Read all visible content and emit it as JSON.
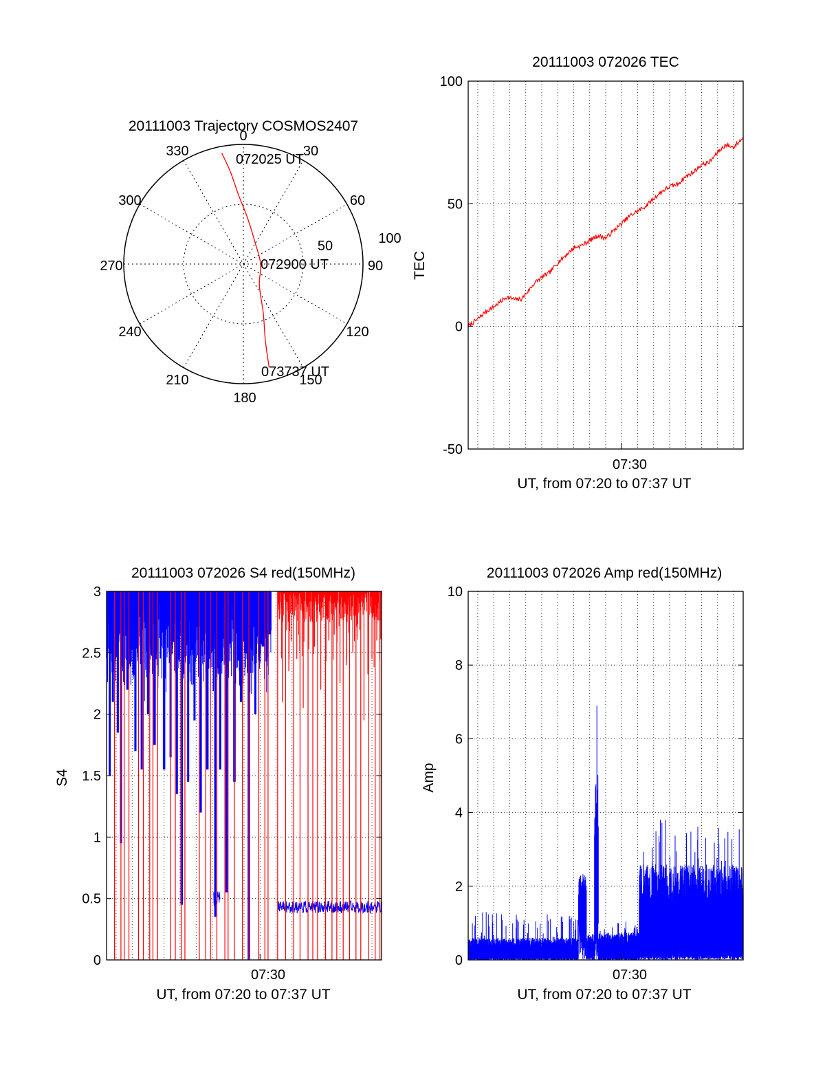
{
  "colors": {
    "red": "#ff0000",
    "blue": "#0000ff",
    "axis": "#000000",
    "grid": "#000000"
  },
  "chart_data": [
    {
      "id": "trajectory",
      "type": "scatter",
      "subtype": "polar",
      "title": "20111003 Trajectory COSMOS2407",
      "azimuth_labels": [
        "0",
        "30",
        "60",
        "90",
        "120",
        "150",
        "180",
        "210",
        "240",
        "270",
        "300",
        "330"
      ],
      "radial_labels": [
        "50",
        "100"
      ],
      "grid": true,
      "track": {
        "color": "#ff0000",
        "points": [
          {
            "azimuth": 349,
            "zenith": 85
          },
          {
            "azimuth": 352,
            "zenith": 70
          },
          {
            "azimuth": 356,
            "zenith": 52
          },
          {
            "azimuth": 5,
            "zenith": 35
          },
          {
            "azimuth": 30,
            "zenith": 18
          },
          {
            "azimuth": 90,
            "zenith": 13
          },
          {
            "azimuth": 143,
            "zenith": 20
          },
          {
            "azimuth": 158,
            "zenith": 40
          },
          {
            "azimuth": 164,
            "zenith": 60
          },
          {
            "azimuth": 166,
            "zenith": 80
          }
        ]
      },
      "annotations": [
        {
          "text": "072025 UT",
          "at": "start"
        },
        {
          "text": "072900 UT",
          "at": "middle"
        },
        {
          "text": "073737 UT",
          "at": "end"
        }
      ]
    },
    {
      "id": "tec",
      "type": "line",
      "title": "20111003 072026 TEC",
      "ylabel": "TEC",
      "xlabel": "UT, from 07:20 to 07:37 UT",
      "ylim": [
        -50,
        100
      ],
      "yticks": [
        "-50",
        "0",
        "50",
        "100"
      ],
      "xlim_minutes": [
        20.4,
        37.6
      ],
      "xtick": {
        "minute": 30,
        "label": "07:30"
      },
      "grid_minutes": [
        21,
        22,
        23,
        24,
        25,
        26,
        27,
        28,
        29,
        30,
        31,
        32,
        33,
        34,
        35,
        36,
        37
      ],
      "ygrid": [
        0,
        50
      ],
      "series": [
        {
          "color": "#ff0000",
          "x": [
            20.4,
            20.6,
            21.0,
            21.5,
            22.0,
            22.4,
            22.8,
            23.3,
            23.7,
            24.1,
            24.6,
            25.0,
            25.5,
            26.0,
            26.5,
            27.0,
            27.5,
            28.0,
            28.5,
            29.0,
            29.5,
            30.0,
            30.5,
            31.0,
            31.5,
            32.0,
            32.5,
            33.0,
            33.5,
            34.0,
            34.5,
            35.0,
            35.5,
            36.0,
            36.5,
            37.0,
            37.6
          ],
          "y": [
            0,
            1,
            3,
            6,
            8,
            10,
            12,
            11,
            11,
            14,
            18,
            20,
            22,
            26,
            29,
            32,
            33,
            35,
            37,
            36,
            39,
            42,
            45,
            47,
            49,
            52,
            55,
            57,
            58,
            61,
            63,
            66,
            67,
            71,
            74,
            73,
            77
          ],
          "noise": 0.9,
          "seed": 7
        }
      ]
    },
    {
      "id": "s4",
      "type": "line",
      "title": "20111003 072026 S4 red(150MHz)",
      "ylabel": "S4",
      "xlabel": "UT, from 07:20 to 07:37 UT",
      "ylim": [
        0,
        3
      ],
      "yticks": [
        "0",
        "0.5",
        "1",
        "1.5",
        "2",
        "2.5",
        "3"
      ],
      "xlim_minutes": [
        20.4,
        37.6
      ],
      "xtick": {
        "minute": 30,
        "label": "07:30"
      },
      "grid_minutes": [
        21,
        22,
        23,
        24,
        25,
        26,
        27,
        28,
        29,
        30,
        31,
        32,
        33,
        34,
        35,
        36,
        37
      ],
      "ygrid": [
        0.5,
        1,
        1.5,
        2,
        2.5
      ],
      "series": [
        {
          "color": "#0000ff",
          "kind": "spiky-top",
          "x_range": [
            20.4,
            30.7
          ],
          "min_depth": [
            {
              "x": 20.6,
              "y": 1.5
            },
            {
              "x": 20.8,
              "y": 2.1
            },
            {
              "x": 21.1,
              "y": 1.85
            },
            {
              "x": 21.3,
              "y": 0.95
            },
            {
              "x": 21.7,
              "y": 2.2
            },
            {
              "x": 22.2,
              "y": 1.7
            },
            {
              "x": 22.6,
              "y": 1.55
            },
            {
              "x": 23.0,
              "y": 2.0
            },
            {
              "x": 23.4,
              "y": 1.75
            },
            {
              "x": 24.0,
              "y": 1.55
            },
            {
              "x": 24.4,
              "y": 1.65
            },
            {
              "x": 24.8,
              "y": 1.35
            },
            {
              "x": 25.1,
              "y": 0.45
            },
            {
              "x": 25.5,
              "y": 1.45
            },
            {
              "x": 25.9,
              "y": 1.95
            },
            {
              "x": 26.3,
              "y": 1.2
            },
            {
              "x": 26.7,
              "y": 1.55
            },
            {
              "x": 27.2,
              "y": 0.35
            },
            {
              "x": 27.5,
              "y": 1.55
            },
            {
              "x": 27.9,
              "y": 0.55
            },
            {
              "x": 28.4,
              "y": 1.45
            },
            {
              "x": 28.8,
              "y": 2.1
            },
            {
              "x": 29.3,
              "y": 0.0
            },
            {
              "x": 29.7,
              "y": 2.0
            },
            {
              "x": 30.2,
              "y": 2.55
            },
            {
              "x": 30.6,
              "y": 2.65
            }
          ]
        },
        {
          "color": "#0000ff",
          "kind": "band",
          "segments": [
            {
              "x0": 27.1,
              "x1": 27.5,
              "y": 0.5,
              "amp": 0.06
            },
            {
              "x0": 31.1,
              "x1": 37.6,
              "y": 0.43,
              "amp": 0.05
            }
          ]
        },
        {
          "color": "#ff0000",
          "kind": "spikes",
          "min": 0.0,
          "x": [
            20.9,
            21.3,
            21.5,
            21.8,
            22.4,
            22.7,
            23.1,
            23.3,
            23.6,
            24.4,
            24.7,
            25.1,
            25.3,
            26.2,
            26.6,
            26.9,
            27.3,
            27.8,
            28.0,
            28.4,
            28.9,
            29.3,
            29.9,
            30.3,
            30.5,
            31.1,
            31.6,
            32.1,
            32.5,
            33.0,
            33.3,
            33.6,
            34.1,
            34.5,
            34.8,
            35.2,
            35.6,
            36.0,
            36.3,
            36.8,
            37.2,
            37.5
          ]
        },
        {
          "color": "#ff0000",
          "kind": "short-spikes",
          "x": [
            31.4,
            31.8,
            32.3,
            32.7,
            33.4,
            33.8,
            34.3,
            35.0,
            35.4,
            35.8,
            36.5,
            37.0,
            37.3
          ],
          "min": [
            2.1,
            2.35,
            2.45,
            2.05,
            2.55,
            2.2,
            2.6,
            2.25,
            2.4,
            2.5,
            1.95,
            2.45,
            2.6
          ]
        }
      ]
    },
    {
      "id": "amp",
      "type": "line",
      "title": "20111003 072026 Amp red(150MHz)",
      "ylabel": "Amp",
      "xlabel": "UT, from 07:20 to 07:37 UT",
      "ylim": [
        0,
        10
      ],
      "yticks": [
        "0",
        "2",
        "4",
        "6",
        "8",
        "10"
      ],
      "xlim_minutes": [
        20.4,
        37.6
      ],
      "xtick": {
        "minute": 30,
        "label": "07:30"
      },
      "grid_minutes": [
        21,
        22,
        23,
        24,
        25,
        26,
        27,
        28,
        29,
        30,
        31,
        32,
        33,
        34,
        35,
        36,
        37
      ],
      "ygrid": [
        2,
        4,
        6,
        8
      ],
      "series": [
        {
          "color": "#0000ff",
          "kind": "noise-band",
          "segments": [
            {
              "x0": 20.4,
              "x1": 27.3,
              "low": 0.05,
              "high": 0.6,
              "peak": 1.3
            },
            {
              "x0": 27.3,
              "x1": 27.8,
              "low": 1.0,
              "high": 2.3,
              "peak": 2.35
            },
            {
              "x0": 27.8,
              "x1": 28.3,
              "low": 0.1,
              "high": 0.7,
              "peak": 0.9
            },
            {
              "x0": 28.3,
              "x1": 28.55,
              "low": 1.2,
              "high": 4.8,
              "peak": 6.9
            },
            {
              "x0": 28.55,
              "x1": 31.1,
              "low": 0.05,
              "high": 0.75,
              "peak": 1.1
            },
            {
              "x0": 31.1,
              "x1": 37.6,
              "low": 0.15,
              "high": 2.6,
              "peak": 3.8
            }
          ]
        }
      ]
    }
  ]
}
